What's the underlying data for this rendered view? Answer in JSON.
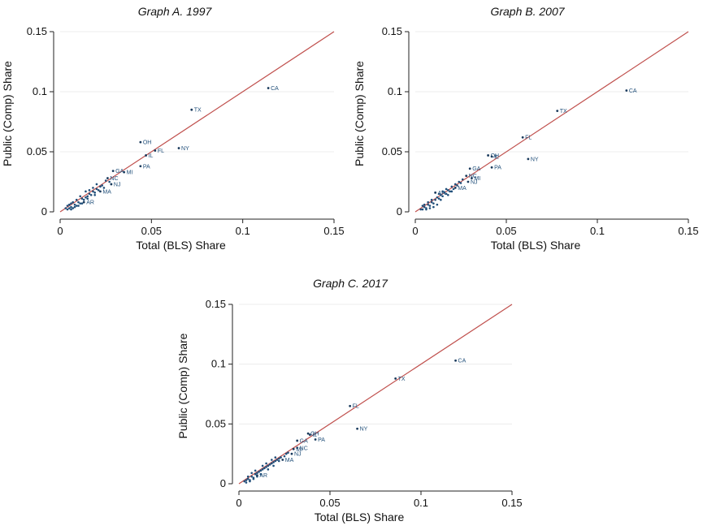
{
  "chart_data": [
    {
      "type": "scatter",
      "title": "Graph A. 1997",
      "xlabel": "Total (BLS) Share",
      "ylabel": "Public (Comp) Share",
      "xlim": [
        0,
        0.15
      ],
      "ylim": [
        0,
        0.15
      ],
      "xticks": [
        "0",
        "0.05",
        "0.1",
        "0.15"
      ],
      "yticks": [
        "0",
        "0.05",
        "0.1",
        "0.15"
      ],
      "grid": true,
      "reference_line": [
        [
          0,
          0
        ],
        [
          0.15,
          0.15
        ]
      ],
      "line_color": "#c0504d",
      "point_color": "#1f4e79",
      "labeled_points": [
        {
          "label": "CA",
          "x": 0.114,
          "y": 0.103
        },
        {
          "label": "TX",
          "x": 0.072,
          "y": 0.085
        },
        {
          "label": "OH",
          "x": 0.044,
          "y": 0.058
        },
        {
          "label": "NY",
          "x": 0.065,
          "y": 0.053
        },
        {
          "label": "FL",
          "x": 0.052,
          "y": 0.051
        },
        {
          "label": "IL",
          "x": 0.047,
          "y": 0.047
        },
        {
          "label": "PA",
          "x": 0.044,
          "y": 0.038
        },
        {
          "label": "MI",
          "x": 0.035,
          "y": 0.033
        },
        {
          "label": "GA",
          "x": 0.029,
          "y": 0.034
        },
        {
          "label": "NJ",
          "x": 0.028,
          "y": 0.023
        },
        {
          "label": "NC",
          "x": 0.026,
          "y": 0.028
        },
        {
          "label": "MA",
          "x": 0.022,
          "y": 0.017
        },
        {
          "label": "AR",
          "x": 0.013,
          "y": 0.008
        }
      ],
      "unlabeled_points": [
        [
          0.004,
          0.002
        ],
        [
          0.005,
          0.003
        ],
        [
          0.006,
          0.004
        ],
        [
          0.007,
          0.003
        ],
        [
          0.008,
          0.006
        ],
        [
          0.009,
          0.005
        ],
        [
          0.01,
          0.008
        ],
        [
          0.011,
          0.007
        ],
        [
          0.012,
          0.011
        ],
        [
          0.013,
          0.01
        ],
        [
          0.014,
          0.012
        ],
        [
          0.015,
          0.013
        ],
        [
          0.016,
          0.015
        ],
        [
          0.017,
          0.014
        ],
        [
          0.018,
          0.017
        ],
        [
          0.019,
          0.016
        ],
        [
          0.02,
          0.019
        ],
        [
          0.021,
          0.018
        ],
        [
          0.022,
          0.021
        ],
        [
          0.023,
          0.022
        ],
        [
          0.024,
          0.02
        ],
        [
          0.025,
          0.026
        ],
        [
          0.027,
          0.025
        ],
        [
          0.006,
          0.002
        ],
        [
          0.008,
          0.004
        ],
        [
          0.01,
          0.005
        ],
        [
          0.012,
          0.007
        ],
        [
          0.009,
          0.01
        ],
        [
          0.007,
          0.008
        ],
        [
          0.005,
          0.006
        ],
        [
          0.011,
          0.013
        ],
        [
          0.014,
          0.017
        ],
        [
          0.016,
          0.018
        ],
        [
          0.018,
          0.02
        ],
        [
          0.02,
          0.023
        ],
        [
          0.003,
          0.003
        ],
        [
          0.004,
          0.005
        ],
        [
          0.006,
          0.007
        ],
        [
          0.015,
          0.011
        ],
        [
          0.019,
          0.014
        ]
      ]
    },
    {
      "type": "scatter",
      "title": "Graph B. 2007",
      "xlabel": "Total (BLS) Share",
      "ylabel": "Public (Comp) Share",
      "xlim": [
        0,
        0.15
      ],
      "ylim": [
        0,
        0.15
      ],
      "xticks": [
        "0",
        "0.05",
        "0.1",
        "0.15"
      ],
      "yticks": [
        "0",
        "0.05",
        "0.1",
        "0.15"
      ],
      "grid": true,
      "reference_line": [
        [
          0,
          0
        ],
        [
          0.15,
          0.15
        ]
      ],
      "line_color": "#c0504d",
      "point_color": "#1f4e79",
      "labeled_points": [
        {
          "label": "CA",
          "x": 0.116,
          "y": 0.101
        },
        {
          "label": "TX",
          "x": 0.078,
          "y": 0.084
        },
        {
          "label": "FL",
          "x": 0.059,
          "y": 0.062
        },
        {
          "label": "OH",
          "x": 0.04,
          "y": 0.047
        },
        {
          "label": "IL",
          "x": 0.042,
          "y": 0.046
        },
        {
          "label": "NY",
          "x": 0.062,
          "y": 0.044
        },
        {
          "label": "PA",
          "x": 0.042,
          "y": 0.037
        },
        {
          "label": "GA",
          "x": 0.03,
          "y": 0.036
        },
        {
          "label": "NC",
          "x": 0.028,
          "y": 0.03
        },
        {
          "label": "MI",
          "x": 0.031,
          "y": 0.028
        },
        {
          "label": "NJ",
          "x": 0.029,
          "y": 0.025
        },
        {
          "label": "MA",
          "x": 0.022,
          "y": 0.02
        },
        {
          "label": "AR",
          "x": 0.011,
          "y": 0.016
        }
      ],
      "unlabeled_points": [
        [
          0.004,
          0.002
        ],
        [
          0.005,
          0.004
        ],
        [
          0.006,
          0.003
        ],
        [
          0.007,
          0.006
        ],
        [
          0.008,
          0.005
        ],
        [
          0.009,
          0.008
        ],
        [
          0.01,
          0.007
        ],
        [
          0.011,
          0.01
        ],
        [
          0.012,
          0.012
        ],
        [
          0.013,
          0.011
        ],
        [
          0.014,
          0.014
        ],
        [
          0.015,
          0.013
        ],
        [
          0.016,
          0.016
        ],
        [
          0.017,
          0.015
        ],
        [
          0.018,
          0.018
        ],
        [
          0.019,
          0.017
        ],
        [
          0.02,
          0.021
        ],
        [
          0.021,
          0.019
        ],
        [
          0.022,
          0.023
        ],
        [
          0.023,
          0.022
        ],
        [
          0.024,
          0.025
        ],
        [
          0.025,
          0.024
        ],
        [
          0.026,
          0.027
        ],
        [
          0.006,
          0.002
        ],
        [
          0.008,
          0.003
        ],
        [
          0.01,
          0.004
        ],
        [
          0.012,
          0.006
        ],
        [
          0.007,
          0.008
        ],
        [
          0.009,
          0.01
        ],
        [
          0.005,
          0.006
        ],
        [
          0.013,
          0.015
        ],
        [
          0.015,
          0.017
        ],
        [
          0.017,
          0.019
        ],
        [
          0.003,
          0.002
        ],
        [
          0.004,
          0.005
        ],
        [
          0.014,
          0.01
        ],
        [
          0.018,
          0.014
        ],
        [
          0.02,
          0.017
        ]
      ]
    },
    {
      "type": "scatter",
      "title": "Graph C. 2017",
      "xlabel": "Total (BLS) Share",
      "ylabel": "Public (Comp) Share",
      "xlim": [
        0,
        0.15
      ],
      "ylim": [
        0,
        0.15
      ],
      "xticks": [
        "0",
        "0.05",
        "0.1",
        "0.15"
      ],
      "yticks": [
        "0",
        "0.05",
        "0.1",
        "0.15"
      ],
      "grid": true,
      "reference_line": [
        [
          0,
          0
        ],
        [
          0.15,
          0.15
        ]
      ],
      "line_color": "#c0504d",
      "point_color": "#1f4e79",
      "labeled_points": [
        {
          "label": "CA",
          "x": 0.119,
          "y": 0.103
        },
        {
          "label": "TX",
          "x": 0.086,
          "y": 0.088
        },
        {
          "label": "FL",
          "x": 0.061,
          "y": 0.065
        },
        {
          "label": "NY",
          "x": 0.065,
          "y": 0.046
        },
        {
          "label": "OH",
          "x": 0.038,
          "y": 0.042
        },
        {
          "label": "IL",
          "x": 0.039,
          "y": 0.041
        },
        {
          "label": "PA",
          "x": 0.042,
          "y": 0.037
        },
        {
          "label": "GA",
          "x": 0.032,
          "y": 0.036
        },
        {
          "label": "NC",
          "x": 0.032,
          "y": 0.03
        },
        {
          "label": "NJ",
          "x": 0.029,
          "y": 0.025
        },
        {
          "label": "MI",
          "x": 0.03,
          "y": 0.029
        },
        {
          "label": "MA",
          "x": 0.024,
          "y": 0.02
        },
        {
          "label": "AR",
          "x": 0.01,
          "y": 0.007
        }
      ],
      "unlabeled_points": [
        [
          0.003,
          0.002
        ],
        [
          0.004,
          0.003
        ],
        [
          0.005,
          0.004
        ],
        [
          0.006,
          0.003
        ],
        [
          0.007,
          0.006
        ],
        [
          0.008,
          0.005
        ],
        [
          0.009,
          0.008
        ],
        [
          0.01,
          0.009
        ],
        [
          0.011,
          0.01
        ],
        [
          0.012,
          0.011
        ],
        [
          0.013,
          0.012
        ],
        [
          0.014,
          0.013
        ],
        [
          0.015,
          0.014
        ],
        [
          0.016,
          0.015
        ],
        [
          0.017,
          0.016
        ],
        [
          0.018,
          0.017
        ],
        [
          0.019,
          0.018
        ],
        [
          0.02,
          0.019
        ],
        [
          0.021,
          0.02
        ],
        [
          0.022,
          0.021
        ],
        [
          0.023,
          0.022
        ],
        [
          0.025,
          0.023
        ],
        [
          0.026,
          0.025
        ],
        [
          0.027,
          0.026
        ],
        [
          0.006,
          0.002
        ],
        [
          0.008,
          0.004
        ],
        [
          0.01,
          0.006
        ],
        [
          0.012,
          0.008
        ],
        [
          0.007,
          0.009
        ],
        [
          0.005,
          0.006
        ],
        [
          0.009,
          0.011
        ],
        [
          0.013,
          0.015
        ],
        [
          0.015,
          0.017
        ],
        [
          0.018,
          0.02
        ],
        [
          0.02,
          0.022
        ],
        [
          0.004,
          0.001
        ],
        [
          0.016,
          0.012
        ],
        [
          0.019,
          0.015
        ],
        [
          0.022,
          0.019
        ]
      ]
    }
  ]
}
